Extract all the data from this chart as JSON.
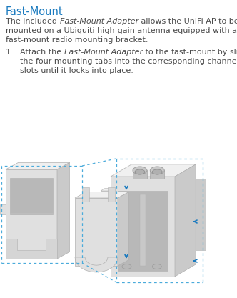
{
  "title": "Fast-Mount",
  "title_color": "#1a7abf",
  "background_color": "#ffffff",
  "text_color": "#4a4a4a",
  "dot_color": "#4aabdb",
  "font_size_title": 10.5,
  "font_size_body": 8.0,
  "fig_width": 3.32,
  "fig_height": 4.17,
  "dpi": 100,
  "body_segments": [
    [
      "The included ",
      false
    ],
    [
      "Fast-Mount Adapter",
      true
    ],
    [
      " allows the UniFi AP to be\nmounted on a Ubiquiti high-gain antenna equipped with a\nfast-mount radio mounting bracket.",
      false
    ]
  ],
  "step1_segments_line1": [
    [
      "Attach the ",
      false
    ],
    [
      "Fast-Mount Adapter",
      true
    ],
    [
      " to the fast-mount by sliding",
      false
    ]
  ],
  "step1_line2": "the four mounting tabs into the corresponding channel",
  "step1_line3": "slots until it locks into place."
}
